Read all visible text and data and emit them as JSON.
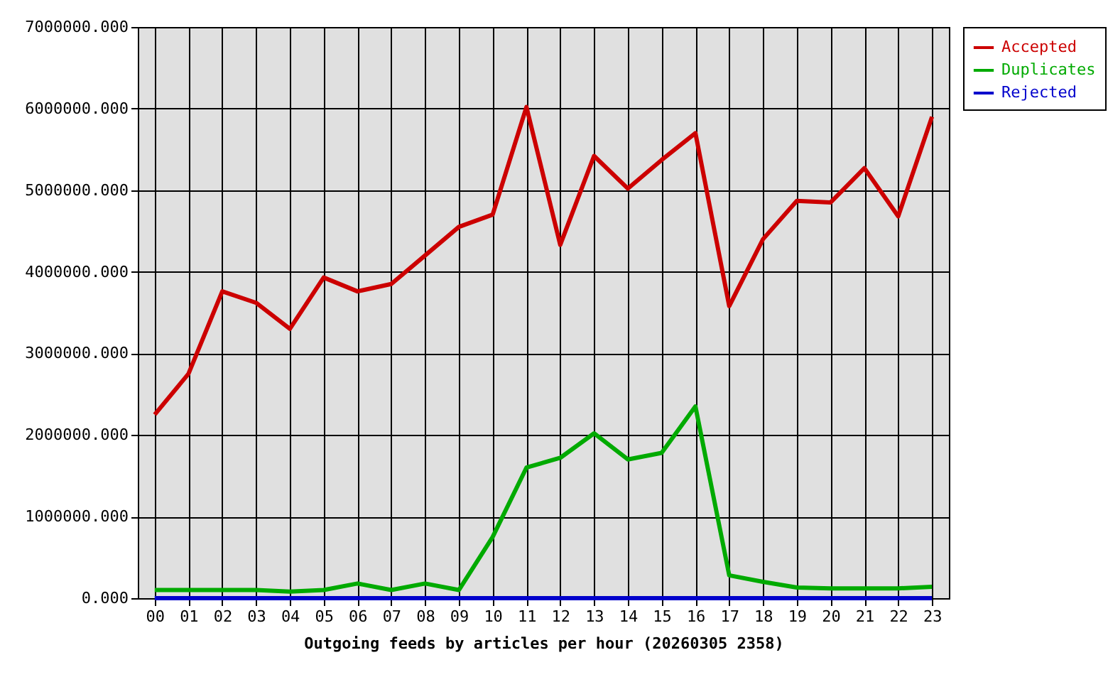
{
  "chart_data": {
    "type": "line",
    "xlabel": "Outgoing feeds by articles per hour (20260305 2358)",
    "categories": [
      "00",
      "01",
      "02",
      "03",
      "04",
      "05",
      "06",
      "07",
      "08",
      "09",
      "10",
      "11",
      "12",
      "13",
      "14",
      "15",
      "16",
      "17",
      "18",
      "19",
      "20",
      "21",
      "22",
      "23"
    ],
    "series": [
      {
        "name": "Accepted",
        "color": "#cc0000",
        "values": [
          2250000,
          2750000,
          3760000,
          3620000,
          3300000,
          3930000,
          3760000,
          3850000,
          4200000,
          4550000,
          4700000,
          6020000,
          4330000,
          5420000,
          5020000,
          5370000,
          5700000,
          3580000,
          4400000,
          4870000,
          4850000,
          5270000,
          4680000,
          5900000
        ]
      },
      {
        "name": "Duplicates",
        "color": "#00aa00",
        "values": [
          100000,
          100000,
          100000,
          100000,
          80000,
          100000,
          180000,
          100000,
          180000,
          100000,
          750000,
          1600000,
          1720000,
          2020000,
          1700000,
          1780000,
          2350000,
          280000,
          200000,
          130000,
          120000,
          120000,
          120000,
          140000
        ]
      },
      {
        "name": "Rejected",
        "color": "#0000cc",
        "values": [
          0,
          0,
          0,
          0,
          0,
          0,
          0,
          0,
          0,
          0,
          0,
          0,
          0,
          0,
          0,
          0,
          0,
          0,
          0,
          0,
          0,
          0,
          0,
          0
        ]
      }
    ],
    "ylim": [
      0,
      7000000
    ],
    "yticks": [
      {
        "value": 0,
        "label": "0.000"
      },
      {
        "value": 1000000,
        "label": "1000000.000"
      },
      {
        "value": 2000000,
        "label": "2000000.000"
      },
      {
        "value": 3000000,
        "label": "3000000.000"
      },
      {
        "value": 4000000,
        "label": "4000000.000"
      },
      {
        "value": 5000000,
        "label": "5000000.000"
      },
      {
        "value": 6000000,
        "label": "6000000.000"
      },
      {
        "value": 7000000,
        "label": "7000000.000"
      }
    ],
    "grid": true,
    "legend": "top right",
    "line_style": "solid"
  }
}
